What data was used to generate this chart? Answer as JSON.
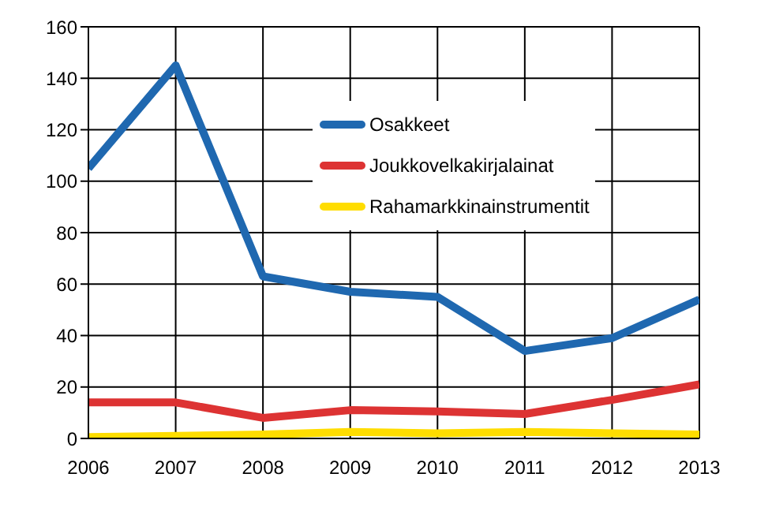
{
  "chart_data": {
    "type": "line",
    "x": [
      2006,
      2007,
      2008,
      2009,
      2010,
      2011,
      2012,
      2013
    ],
    "xlim": [
      2006,
      2013
    ],
    "xticks": [
      2006,
      2007,
      2008,
      2009,
      2010,
      2011,
      2012,
      2013
    ],
    "ylim": [
      0,
      160
    ],
    "yticks": [
      0,
      20,
      40,
      60,
      80,
      100,
      120,
      140,
      160
    ],
    "grid": true,
    "legend": "top",
    "marker": "none",
    "line_style": "solid",
    "series": [
      {
        "name": "Osakkeet",
        "color": "#1f68b0",
        "values": [
          105,
          145,
          63,
          57,
          55,
          34,
          39,
          54
        ]
      },
      {
        "name": "Joukkovelkakirjalainat",
        "color": "#dd3333",
        "values": [
          14,
          14,
          8,
          11,
          10.5,
          9.5,
          15,
          21
        ]
      },
      {
        "name": "Rahamarkkinainstrumentit",
        "color": "#ffdd00",
        "values": [
          0.5,
          1,
          1.5,
          2.5,
          2,
          2.5,
          2,
          1.5
        ]
      }
    ]
  }
}
